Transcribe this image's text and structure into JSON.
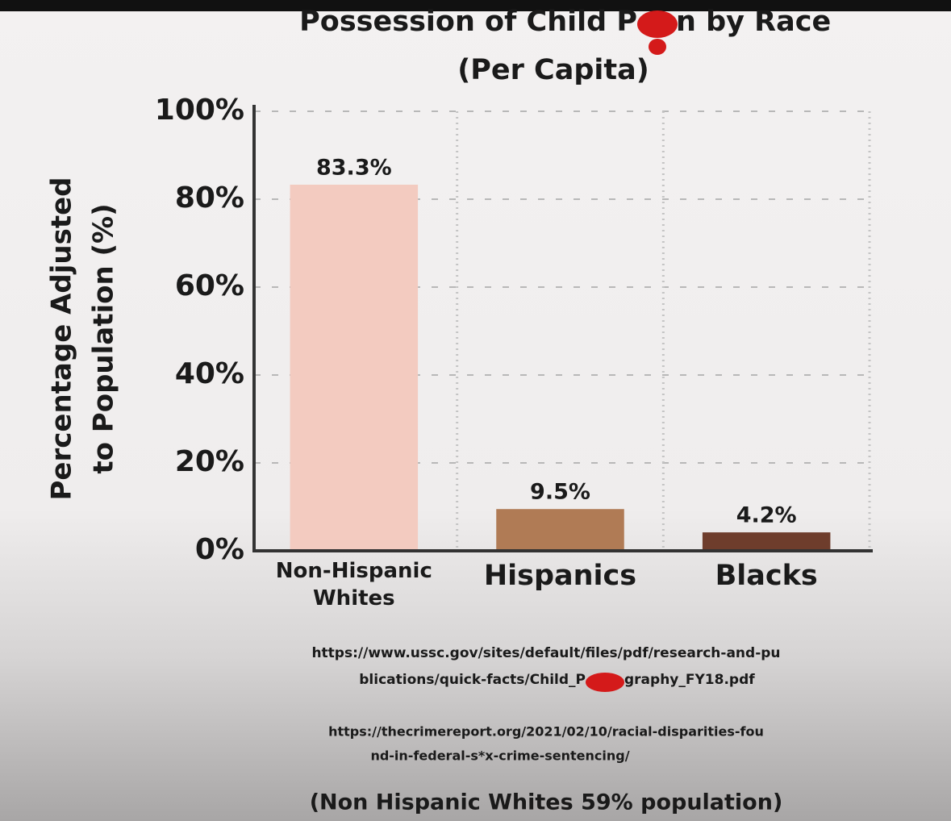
{
  "chart_data": {
    "type": "bar",
    "title": [
      "Possession of Child P",
      "n by Race"
    ],
    "subtitle": "(Per Capita)",
    "ylabel": [
      "Percentage Adjusted",
      "to Population (%)"
    ],
    "categories": [
      "Non-Hispanic Whites",
      "Hispanics",
      "Blacks"
    ],
    "values": [
      83.3,
      9.5,
      4.2
    ],
    "value_labels": [
      "83.3%",
      "9.5%",
      "4.2%"
    ],
    "colors": [
      "#f3cbc0",
      "#b07b55",
      "#6e3d2c"
    ],
    "ylim": [
      0,
      100
    ],
    "yticks": [
      {
        "value": 0,
        "label": "0%"
      },
      {
        "value": 20,
        "label": "20%"
      },
      {
        "value": 40,
        "label": "40%"
      },
      {
        "value": 60,
        "label": "60%"
      },
      {
        "value": 80,
        "label": "80%"
      },
      {
        "value": 100,
        "label": "100%"
      }
    ],
    "grid": true,
    "sources": [
      [
        "https://www.ussc.gov/sites/default/files/pdf/research-and-pu",
        [
          "blications/quick-facts/Child_P",
          "graphy_FY18.pdf"
        ]
      ],
      [
        "https://thecrimereport.org/2021/02/10/racial-disparities-fou",
        "nd-in-federal-s*x-crime-sentencing/"
      ]
    ],
    "note": "(Non Hispanic Whites 59% population)"
  }
}
